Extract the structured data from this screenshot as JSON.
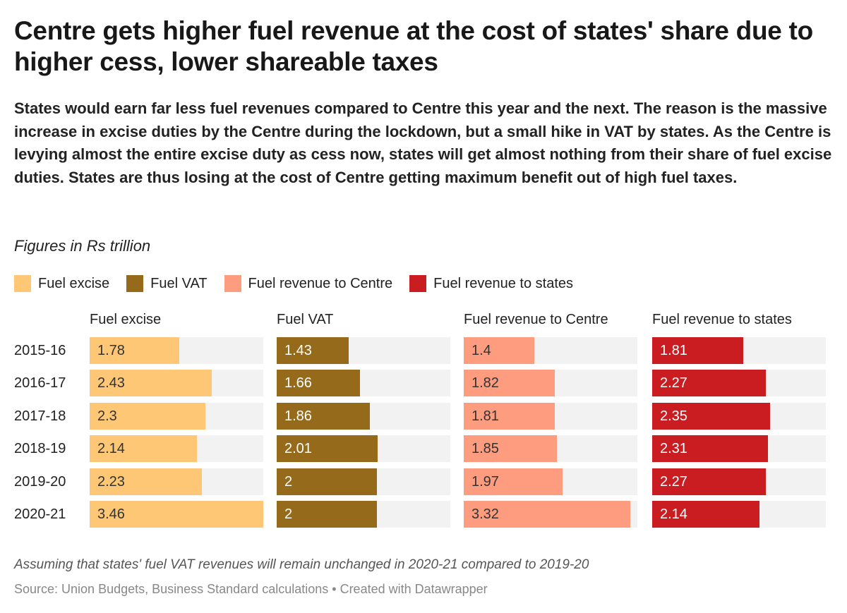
{
  "title": "Centre gets higher fuel revenue at the cost of states' share due to higher cess, lower shareable taxes",
  "subtitle": "States would earn far less fuel revenues compared to Centre this year and the next. The reason is the massive increase in excise duties by the Centre during the lockdown, but a small hike in VAT by states. As the Centre is levying almost the entire excise duty as cess now, states will get almost nothing from their share of fuel excise duties. States are thus losing at the cost of Centre getting maximum benefit out of high fuel taxes.",
  "unit_note": "Figures in Rs trillion",
  "note": "Assuming that states' fuel VAT revenues will remain unchanged in 2020-21 compared to 2019-20",
  "source": "Source: Union Budgets, Business Standard calculations • Created with Datawrapper",
  "chart_data": {
    "type": "bar",
    "orientation": "horizontal",
    "layout": "small-multiples",
    "legend_position": "top-left",
    "xlim": [
      0,
      3.46
    ],
    "categories": [
      "2015-16",
      "2016-17",
      "2017-18",
      "2018-19",
      "2019-20",
      "2020-21"
    ],
    "series": [
      {
        "name": "Fuel excise",
        "color": "#fdc776",
        "label_color": "#333333",
        "values": [
          1.78,
          2.43,
          2.3,
          2.14,
          2.23,
          3.46
        ]
      },
      {
        "name": "Fuel VAT",
        "color": "#956a1b",
        "label_color": "#ffffff",
        "values": [
          1.43,
          1.66,
          1.86,
          2.01,
          2,
          2
        ]
      },
      {
        "name": "Fuel revenue to Centre",
        "color": "#fe9c80",
        "label_color": "#333333",
        "values": [
          1.4,
          1.82,
          1.81,
          1.85,
          1.97,
          3.32
        ]
      },
      {
        "name": "Fuel revenue to states",
        "color": "#c91d22",
        "label_color": "#ffffff",
        "values": [
          1.81,
          2.27,
          2.35,
          2.31,
          2.27,
          2.14
        ]
      }
    ],
    "track_color": "#f2f2f2"
  }
}
